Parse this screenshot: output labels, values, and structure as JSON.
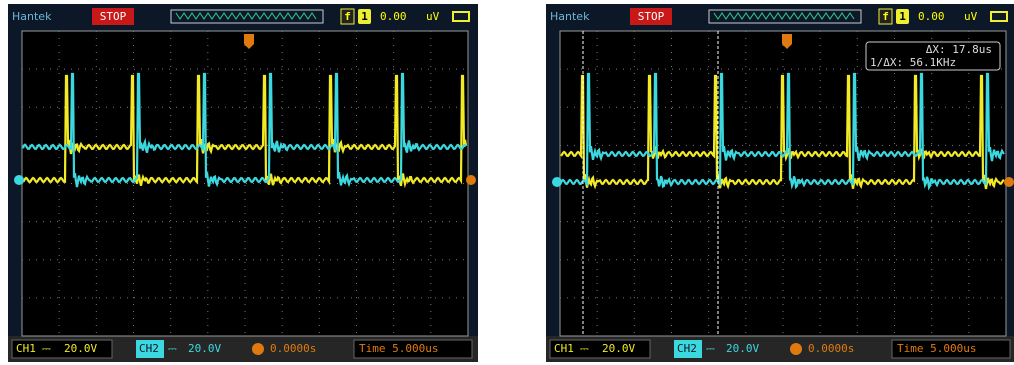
{
  "scopes": [
    {
      "brand": "Hantek",
      "status": "STOP",
      "trigger_mode": "f",
      "trigger_source": "1",
      "trigger_level": "0.00",
      "trigger_unit": "uV",
      "ch1": {
        "name": "CH1",
        "coupling": "⎓",
        "scale": "20.0V"
      },
      "ch2": {
        "name": "CH2",
        "coupling": "⎓",
        "scale": "20.0V"
      },
      "position": "0.0000s",
      "timebase": "Time 5.000us"
    },
    {
      "brand": "Hantek",
      "status": "STOP",
      "trigger_mode": "f",
      "trigger_source": "1",
      "trigger_level": "0.00",
      "trigger_unit": "uV",
      "ch1": {
        "name": "CH1",
        "coupling": "⎓",
        "scale": "20.0V"
      },
      "ch2": {
        "name": "CH2",
        "coupling": "⎓",
        "scale": "20.0V"
      },
      "position": "0.0000s",
      "timebase": "Time 5.000us",
      "cursor": {
        "delta": "ΔX: 17.8us",
        "frequency": "1/ΔX: 56.1KHz"
      }
    }
  ]
}
